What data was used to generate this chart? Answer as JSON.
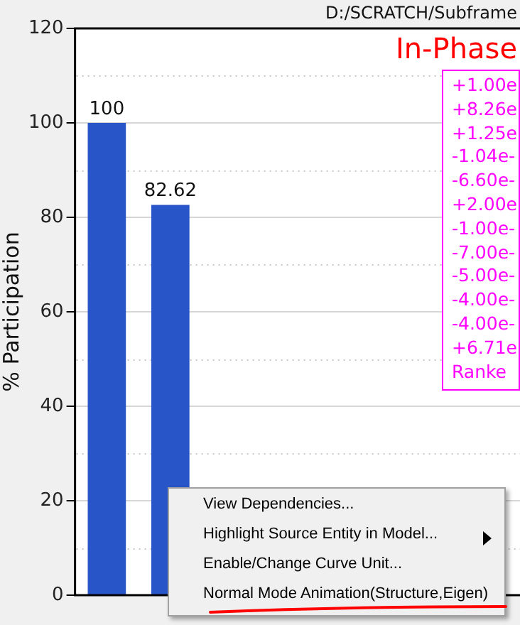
{
  "chart_data": {
    "type": "bar",
    "title": "In-Phase",
    "ylabel": "% Participation",
    "categories": [
      null,
      null,
      null,
      null,
      null,
      null,
      null
    ],
    "values": [
      100,
      82.62,
      null,
      null,
      null,
      null,
      null
    ],
    "color": "#2855c8",
    "ylim": [
      0,
      120
    ],
    "yticks": [
      0,
      {
        "value": 10,
        "label": null
      },
      20,
      {
        "value": 30,
        "label": null
      },
      40,
      {
        "value": 50,
        "label": null
      },
      60,
      {
        "value": 70,
        "label": null
      },
      80,
      {
        "value": 90,
        "label": null
      },
      100,
      {
        "value": 110,
        "label": null
      },
      120
    ],
    "grid": "y",
    "data_labels": true,
    "tick_labels": "y",
    "annotations": [
      "D:/SCRATCH/Subframe",
      "+1.00e",
      "+8.26e",
      "+1.25e",
      "-1.04e-",
      "-6.60e-",
      "+2.00e",
      "-1.00e-",
      "-7.00e-",
      "-5.00e-",
      "-4.00e-",
      "-4.00e-",
      "+6.71e",
      "Ranke",
      "View Dependencies...",
      "Highlight Source Entity in Model...",
      "Enable/Change Curve Unit...",
      "Normal Mode Animation(Structure,Eigen)"
    ]
  }
}
